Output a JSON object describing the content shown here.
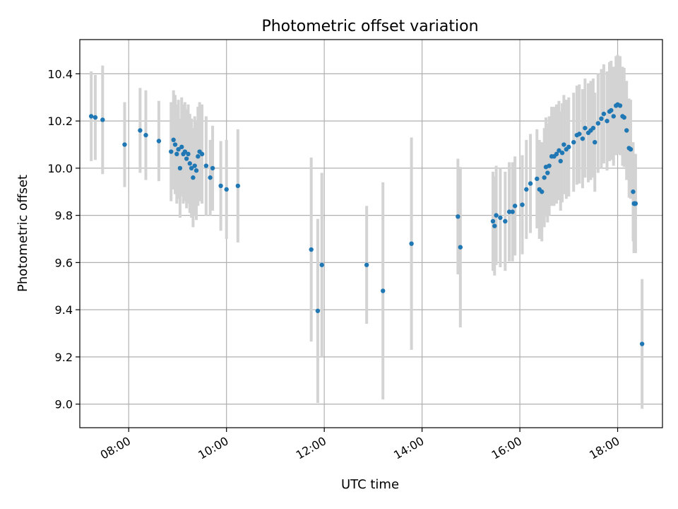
{
  "chart_data": {
    "type": "scatter",
    "title": "Photometric offset variation",
    "xlabel": "UTC time",
    "ylabel": "Photometric offset",
    "x_format": "HH:MM",
    "xlim": [
      "07:00",
      "18:55"
    ],
    "ylim": [
      8.9,
      10.545
    ],
    "xticks": [
      "08:00",
      "10:00",
      "12:00",
      "14:00",
      "16:00",
      "18:00"
    ],
    "yticks": [
      9.0,
      9.2,
      9.4,
      9.6,
      9.8,
      10.0,
      10.2,
      10.4
    ],
    "grid": true,
    "point_color": "#1f77b4",
    "errorbar_color": "#d3d3d3",
    "series": [
      {
        "points": [
          [
            "07:14",
            10.22,
            0.19
          ],
          [
            "07:19",
            10.215,
            0.18
          ],
          [
            "07:28",
            10.205,
            0.23
          ],
          [
            "07:55",
            10.1,
            0.18
          ],
          [
            "08:14",
            10.16,
            0.18
          ],
          [
            "08:21",
            10.14,
            0.19
          ],
          [
            "08:37",
            10.115,
            0.17
          ],
          [
            "08:52",
            10.07,
            0.21
          ],
          [
            "08:55",
            10.12,
            0.21
          ],
          [
            "08:57",
            10.1,
            0.21
          ],
          [
            "08:59",
            10.06,
            0.21
          ],
          [
            "09:01",
            10.08,
            0.21
          ],
          [
            "09:03",
            10.0,
            0.21
          ],
          [
            "09:05",
            10.09,
            0.21
          ],
          [
            "09:07",
            10.06,
            0.21
          ],
          [
            "09:09",
            10.07,
            0.21
          ],
          [
            "09:11",
            10.04,
            0.21
          ],
          [
            "09:13",
            10.06,
            0.21
          ],
          [
            "09:15",
            10.02,
            0.21
          ],
          [
            "09:17",
            10.0,
            0.21
          ],
          [
            "09:19",
            9.96,
            0.21
          ],
          [
            "09:21",
            10.01,
            0.21
          ],
          [
            "09:23",
            9.99,
            0.21
          ],
          [
            "09:25",
            10.05,
            0.21
          ],
          [
            "09:27",
            10.07,
            0.21
          ],
          [
            "09:30",
            10.06,
            0.21
          ],
          [
            "09:35",
            10.01,
            0.21
          ],
          [
            "09:40",
            9.96,
            0.16
          ],
          [
            "09:43",
            10.0,
            0.18
          ],
          [
            "09:53",
            9.925,
            0.19
          ],
          [
            "10:00",
            9.91,
            0.21
          ],
          [
            "10:14",
            9.925,
            0.24
          ],
          [
            "11:44",
            9.655,
            0.39
          ],
          [
            "11:52",
            9.395,
            0.39
          ],
          [
            "11:57",
            9.59,
            0.39
          ],
          [
            "12:52",
            9.59,
            0.25
          ],
          [
            "13:12",
            9.48,
            0.46
          ],
          [
            "13:47",
            9.68,
            0.45
          ],
          [
            "14:44",
            9.795,
            0.245
          ],
          [
            "14:47",
            9.665,
            0.34
          ],
          [
            "15:27",
            9.775,
            0.21
          ],
          [
            "15:29",
            9.755,
            0.21
          ],
          [
            "15:31",
            9.8,
            0.21
          ],
          [
            "15:36",
            9.79,
            0.21
          ],
          [
            "15:42",
            9.775,
            0.21
          ],
          [
            "15:47",
            9.815,
            0.21
          ],
          [
            "15:51",
            9.815,
            0.21
          ],
          [
            "15:54",
            9.84,
            0.21
          ],
          [
            "16:03",
            9.845,
            0.21
          ],
          [
            "16:08",
            9.91,
            0.21
          ],
          [
            "16:13",
            9.935,
            0.21
          ],
          [
            "16:21",
            9.955,
            0.21
          ],
          [
            "16:24",
            9.91,
            0.21
          ],
          [
            "16:27",
            9.9,
            0.21
          ],
          [
            "16:30",
            9.96,
            0.21
          ],
          [
            "16:32",
            10.005,
            0.21
          ],
          [
            "16:34",
            9.98,
            0.21
          ],
          [
            "16:36",
            10.01,
            0.21
          ],
          [
            "16:39",
            10.05,
            0.21
          ],
          [
            "16:42",
            10.05,
            0.21
          ],
          [
            "16:45",
            10.06,
            0.21
          ],
          [
            "16:48",
            10.075,
            0.21
          ],
          [
            "16:50",
            10.03,
            0.21
          ],
          [
            "16:52",
            10.065,
            0.21
          ],
          [
            "16:54",
            10.1,
            0.21
          ],
          [
            "16:57",
            10.08,
            0.21
          ],
          [
            "17:00",
            10.09,
            0.21
          ],
          [
            "17:06",
            10.11,
            0.21
          ],
          [
            "17:10",
            10.14,
            0.21
          ],
          [
            "17:13",
            10.145,
            0.21
          ],
          [
            "17:17",
            10.125,
            0.21
          ],
          [
            "17:20",
            10.17,
            0.21
          ],
          [
            "17:24",
            10.15,
            0.21
          ],
          [
            "17:27",
            10.16,
            0.21
          ],
          [
            "17:30",
            10.17,
            0.21
          ],
          [
            "17:32",
            10.11,
            0.21
          ],
          [
            "17:36",
            10.19,
            0.21
          ],
          [
            "17:40",
            10.21,
            0.21
          ],
          [
            "17:43",
            10.23,
            0.21
          ],
          [
            "17:47",
            10.2,
            0.21
          ],
          [
            "17:50",
            10.24,
            0.21
          ],
          [
            "17:52",
            10.245,
            0.21
          ],
          [
            "17:55",
            10.22,
            0.21
          ],
          [
            "17:58",
            10.265,
            0.21
          ],
          [
            "18:00",
            10.27,
            0.21
          ],
          [
            "18:03",
            10.265,
            0.21
          ],
          [
            "18:06",
            10.22,
            0.21
          ],
          [
            "18:08",
            10.215,
            0.21
          ],
          [
            "18:11",
            10.16,
            0.21
          ],
          [
            "18:14",
            10.085,
            0.21
          ],
          [
            "18:16",
            10.08,
            0.21
          ],
          [
            "18:19",
            9.9,
            0.21
          ],
          [
            "18:22",
            9.85,
            0.21
          ],
          [
            "18:21",
            9.85,
            0.21
          ],
          [
            "18:21",
            9.85,
            0.21
          ],
          [
            "18:21",
            9.85,
            0.21
          ],
          [
            "18:21",
            9.85,
            0.21
          ],
          [
            "18:21",
            9.85,
            0.21
          ],
          [
            "18:21",
            9.85,
            0.21
          ],
          [
            "18:20",
            9.85,
            0.21
          ],
          [
            "18:21",
            9.85,
            0.21
          ],
          [
            "18:21",
            9.85,
            0.21
          ],
          [
            "18:21",
            9.85,
            0.21
          ],
          [
            "18:21",
            9.85,
            0.21
          ],
          [
            "18:21",
            9.85,
            0.21
          ],
          [
            "18:21",
            9.85,
            0.21
          ],
          [
            "18:21",
            9.85,
            0.21
          ],
          [
            "18:21",
            9.85,
            0.21
          ],
          [
            "18:21",
            9.85,
            0.21
          ],
          [
            "18:21",
            9.85,
            0.21
          ],
          [
            "18:21",
            9.85,
            0.21
          ],
          [
            "18:21",
            9.85,
            0.21
          ],
          [
            "18:21",
            9.85,
            0.21
          ],
          [
            "18:21",
            9.85,
            0.21
          ],
          [
            "18:21",
            9.85,
            0.21
          ],
          [
            "18:21",
            9.85,
            0.21
          ],
          [
            "18:21",
            9.85,
            0.21
          ],
          [
            "18:21",
            9.85,
            0.21
          ],
          [
            "18:21",
            9.85,
            0.21
          ],
          [
            "18:21",
            9.85,
            0.21
          ],
          [
            "18:21",
            9.85,
            0.21
          ],
          [
            "18:21",
            9.85,
            0.21
          ],
          [
            "18:21",
            9.85,
            0.21
          ],
          [
            "18:21",
            9.85,
            0.21
          ],
          [
            "18:21",
            9.85,
            0.21
          ],
          [
            "18:21",
            9.85,
            0.21
          ],
          [
            "18:21",
            9.85,
            0.21
          ],
          [
            "18:21",
            9.85,
            0.21
          ],
          [
            "18:21",
            9.85,
            0.21
          ],
          [
            "18:21",
            9.85,
            0.21
          ],
          [
            "18:21",
            9.85,
            0.21
          ],
          [
            "18:21",
            9.85,
            0.21
          ],
          [
            "18:21",
            9.85,
            0.21
          ],
          [
            "18:21",
            9.85,
            0.21
          ],
          [
            "18:21",
            9.85,
            0.21
          ],
          [
            "18:21",
            9.85,
            0.21
          ],
          [
            "18:21",
            9.85,
            0.21
          ],
          [
            "18:30",
            9.255,
            0.275
          ]
        ]
      }
    ]
  }
}
